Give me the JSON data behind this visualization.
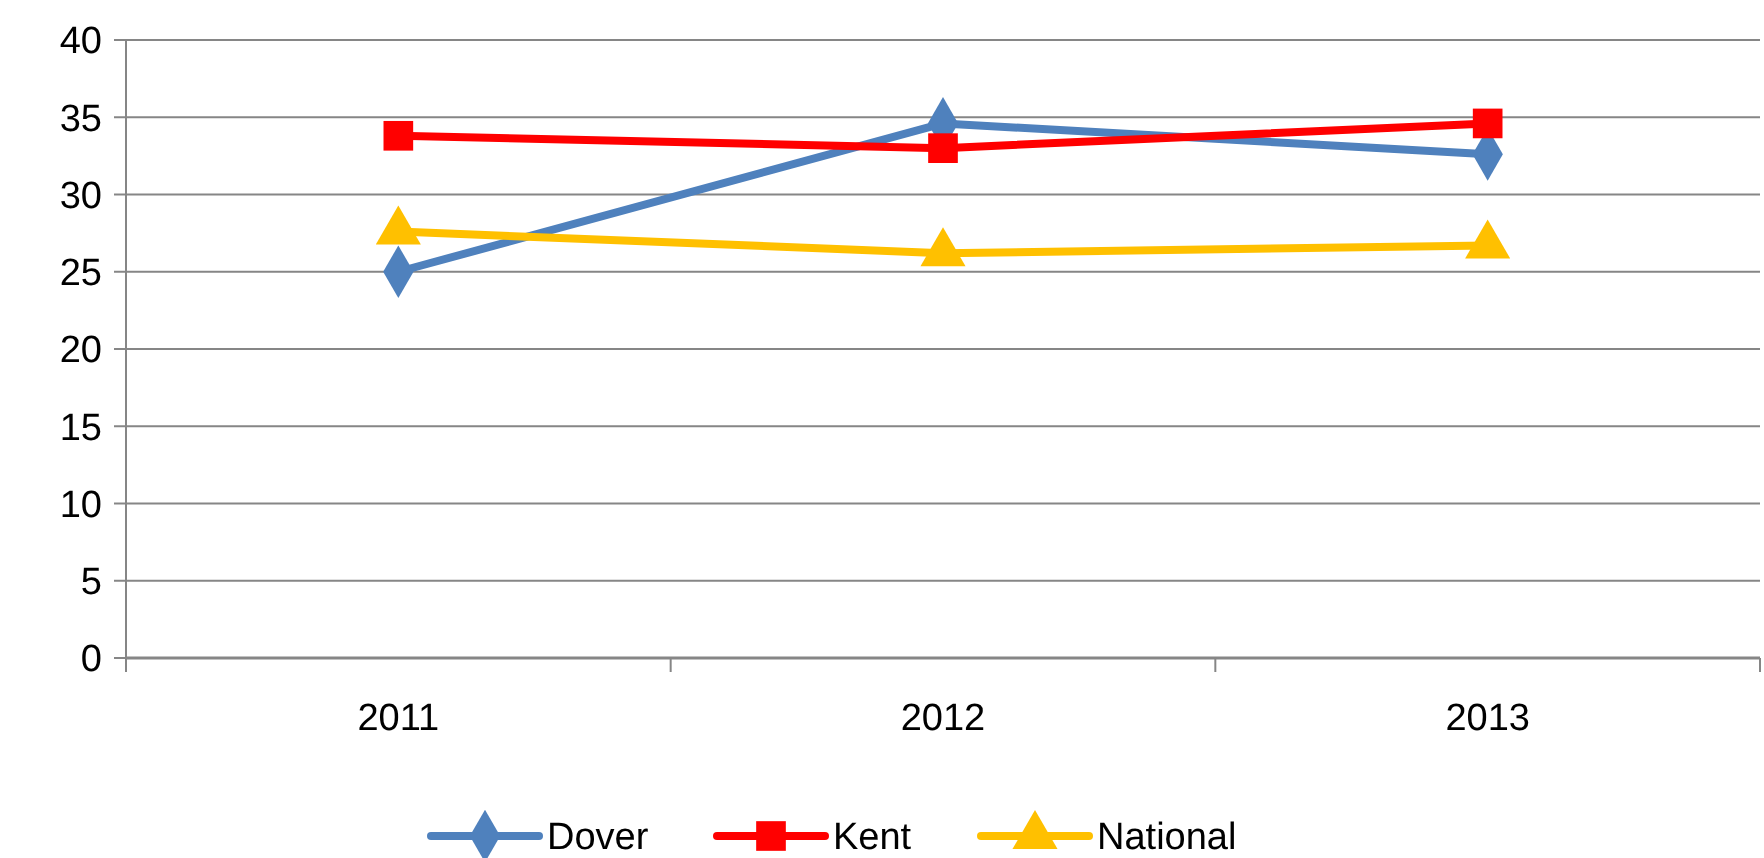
{
  "chart_data": {
    "type": "line",
    "categories": [
      "2011",
      "2012",
      "2013"
    ],
    "series": [
      {
        "name": "Dover",
        "color": "#4f81bd",
        "marker": "diamond",
        "values": [
          25.0,
          34.6,
          32.6
        ]
      },
      {
        "name": "Kent",
        "color": "#ff0000",
        "marker": "square",
        "values": [
          33.8,
          33.0,
          34.6
        ]
      },
      {
        "name": "National",
        "color": "#ffc000",
        "marker": "triangle",
        "values": [
          27.6,
          26.2,
          26.7
        ]
      }
    ],
    "ylim": [
      0,
      40
    ],
    "yticks": [
      0,
      5,
      10,
      15,
      20,
      25,
      30,
      35,
      40
    ],
    "grid": "y",
    "legend": "bottom",
    "line_style": "solid"
  }
}
